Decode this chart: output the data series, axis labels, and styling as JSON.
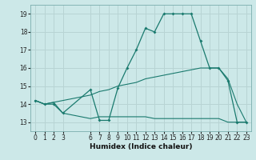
{
  "title": "",
  "xlabel": "Humidex (Indice chaleur)",
  "background_color": "#cce8e8",
  "grid_color": "#b8d4d4",
  "line_color": "#1a7a6e",
  "xlim": [
    -0.5,
    23.5
  ],
  "ylim": [
    12.5,
    19.5
  ],
  "xticks": [
    0,
    1,
    2,
    3,
    6,
    7,
    8,
    9,
    10,
    11,
    12,
    13,
    14,
    15,
    16,
    17,
    18,
    19,
    20,
    21,
    22,
    23
  ],
  "yticks": [
    13,
    14,
    15,
    16,
    17,
    18,
    19
  ],
  "line1_x": [
    0,
    1,
    2,
    3,
    6,
    7,
    8,
    9,
    10,
    11,
    12,
    13,
    14,
    15,
    16,
    17,
    18,
    19,
    20,
    21,
    22,
    23
  ],
  "line1_y": [
    14.2,
    14.0,
    14.0,
    13.5,
    14.8,
    13.1,
    13.1,
    14.9,
    16.0,
    17.0,
    18.2,
    18.0,
    19.0,
    19.0,
    19.0,
    19.0,
    17.5,
    16.0,
    16.0,
    15.3,
    13.0,
    13.0
  ],
  "line2_x": [
    0,
    1,
    2,
    3,
    6,
    7,
    8,
    9,
    10,
    11,
    12,
    13,
    14,
    15,
    16,
    17,
    18,
    19,
    20,
    21,
    22,
    23
  ],
  "line2_y": [
    14.2,
    14.0,
    14.1,
    13.5,
    13.2,
    13.3,
    13.3,
    13.3,
    13.3,
    13.3,
    13.3,
    13.2,
    13.2,
    13.2,
    13.2,
    13.2,
    13.2,
    13.2,
    13.2,
    13.0,
    13.0,
    13.0
  ],
  "line3_x": [
    0,
    1,
    2,
    3,
    6,
    7,
    8,
    9,
    10,
    11,
    12,
    13,
    14,
    15,
    16,
    17,
    18,
    19,
    20,
    21,
    22,
    23
  ],
  "line3_y": [
    14.2,
    14.0,
    14.1,
    14.2,
    14.5,
    14.7,
    14.8,
    15.0,
    15.1,
    15.2,
    15.4,
    15.5,
    15.6,
    15.7,
    15.8,
    15.9,
    16.0,
    16.0,
    16.0,
    15.4,
    14.0,
    13.0
  ],
  "xlabel_fontsize": 6.5,
  "tick_fontsize": 5.5
}
